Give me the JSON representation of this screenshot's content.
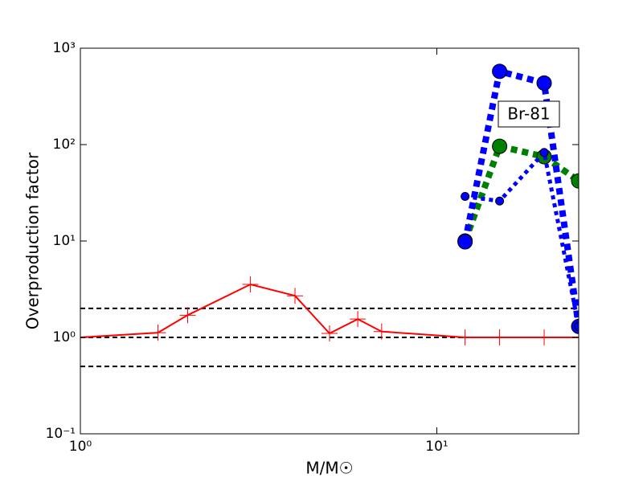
{
  "chart_data": {
    "type": "line",
    "xlabel": "M/M☉",
    "ylabel": "Overproduction factor",
    "xscale": "log",
    "yscale": "log",
    "xlim": [
      1,
      25
    ],
    "ylim": [
      0.1,
      1000
    ],
    "xticks": [
      {
        "value": 1,
        "label": "10⁰"
      },
      {
        "value": 10,
        "label": "10¹"
      }
    ],
    "yticks": [
      {
        "value": 0.1,
        "label": "10⁻¹"
      },
      {
        "value": 1,
        "label": "10⁰"
      },
      {
        "value": 10,
        "label": "10¹"
      },
      {
        "value": 100,
        "label": "10²"
      },
      {
        "value": 1000,
        "label": "10³"
      }
    ],
    "reference_lines": [
      0.5,
      1,
      2
    ],
    "annotation": "Br-81",
    "series": [
      {
        "color": "#ff0000",
        "marker": "plus",
        "line_style": "solid",
        "weight": "thin",
        "x": [
          1,
          1.65,
          2,
          3,
          4,
          5,
          6,
          7,
          12,
          15,
          20,
          25
        ],
        "values": [
          1,
          1.12,
          1.7,
          3.55,
          2.7,
          1.1,
          1.55,
          1.15,
          1,
          1,
          1,
          1
        ]
      },
      {
        "color": "#008000",
        "marker": "circle",
        "line_style": "dotted",
        "weight": "thick",
        "x": [
          12,
          15,
          20,
          25
        ],
        "values": [
          10,
          96,
          75,
          42
        ]
      },
      {
        "color": "#0000ff",
        "marker": "circle",
        "line_style": "dotted",
        "weight": "thick",
        "x": [
          12,
          15,
          20,
          25
        ],
        "values": [
          9.8,
          575,
          435,
          1.3
        ]
      },
      {
        "color": "#0000ff",
        "marker": "circle",
        "line_style": "dotted",
        "weight": "thin",
        "x": [
          12,
          15,
          20,
          25
        ],
        "values": [
          29,
          26,
          83,
          1.3
        ]
      }
    ]
  }
}
